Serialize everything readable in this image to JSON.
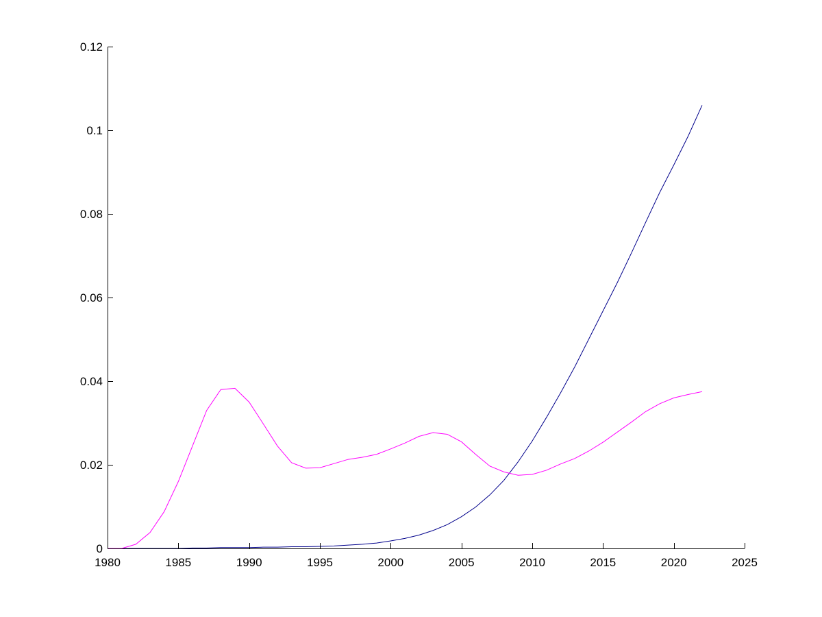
{
  "chart_data": {
    "type": "line",
    "title": "",
    "xlabel": "",
    "ylabel": "",
    "xlim": [
      1980,
      2025
    ],
    "ylim": [
      0,
      0.12
    ],
    "grid": false,
    "legend": "none",
    "x_ticks": [
      1980,
      1985,
      1990,
      1995,
      2000,
      2005,
      2010,
      2015,
      2020,
      2025
    ],
    "y_ticks": [
      0,
      0.02,
      0.04,
      0.06,
      0.08,
      0.1,
      0.12
    ],
    "x_tick_labels": [
      "1980",
      "1985",
      "1990",
      "1995",
      "2000",
      "2005",
      "2010",
      "2015",
      "2020",
      "2025"
    ],
    "y_tick_labels": [
      "0",
      "0.02",
      "0.04",
      "0.06",
      "0.08",
      "0.1",
      "0.12"
    ],
    "series": [
      {
        "color": "#00008b",
        "x": [
          1980,
          1981,
          1982,
          1983,
          1984,
          1985,
          1986,
          1987,
          1988,
          1989,
          1990,
          1991,
          1992,
          1993,
          1994,
          1995,
          1996,
          1997,
          1998,
          1999,
          2000,
          2001,
          2002,
          2003,
          2004,
          2005,
          2006,
          2007,
          2008,
          2009,
          2010,
          2011,
          2012,
          2013,
          2014,
          2015,
          2016,
          2017,
          2018,
          2019,
          2020,
          2021,
          2022
        ],
        "values": [
          0,
          0,
          0,
          0,
          0,
          0,
          0.0001,
          0.0001,
          0.0002,
          0.0002,
          0.0002,
          0.0003,
          0.0003,
          0.0004,
          0.0004,
          0.0005,
          0.0006,
          0.0008,
          0.001,
          0.0013,
          0.0018,
          0.0024,
          0.0032,
          0.0043,
          0.0057,
          0.0076,
          0.0099,
          0.0128,
          0.0163,
          0.0207,
          0.0257,
          0.0313,
          0.0372,
          0.0434,
          0.0501,
          0.0568,
          0.0635,
          0.0706,
          0.0779,
          0.0851,
          0.0917,
          0.0985,
          0.106
        ]
      },
      {
        "color": "#ff00ff",
        "x": [
          1980,
          1981,
          1982,
          1983,
          1984,
          1985,
          1986,
          1987,
          1988,
          1989,
          1990,
          1991,
          1992,
          1993,
          1994,
          1995,
          1996,
          1997,
          1998,
          1999,
          2000,
          2001,
          2002,
          2003,
          2004,
          2005,
          2006,
          2007,
          2008,
          2009,
          2010,
          2011,
          2012,
          2013,
          2014,
          2015,
          2016,
          2017,
          2018,
          2019,
          2020,
          2021,
          2022
        ],
        "values": [
          0,
          0,
          0.001,
          0.0038,
          0.0088,
          0.016,
          0.0245,
          0.033,
          0.038,
          0.0383,
          0.035,
          0.0298,
          0.0245,
          0.0205,
          0.0192,
          0.0193,
          0.0203,
          0.0213,
          0.0218,
          0.0225,
          0.0238,
          0.0252,
          0.0268,
          0.0277,
          0.0273,
          0.0255,
          0.0225,
          0.0197,
          0.0183,
          0.0175,
          0.0177,
          0.0187,
          0.0202,
          0.0215,
          0.0233,
          0.0254,
          0.0278,
          0.0302,
          0.0327,
          0.0346,
          0.036,
          0.0368,
          0.0375
        ]
      }
    ]
  }
}
